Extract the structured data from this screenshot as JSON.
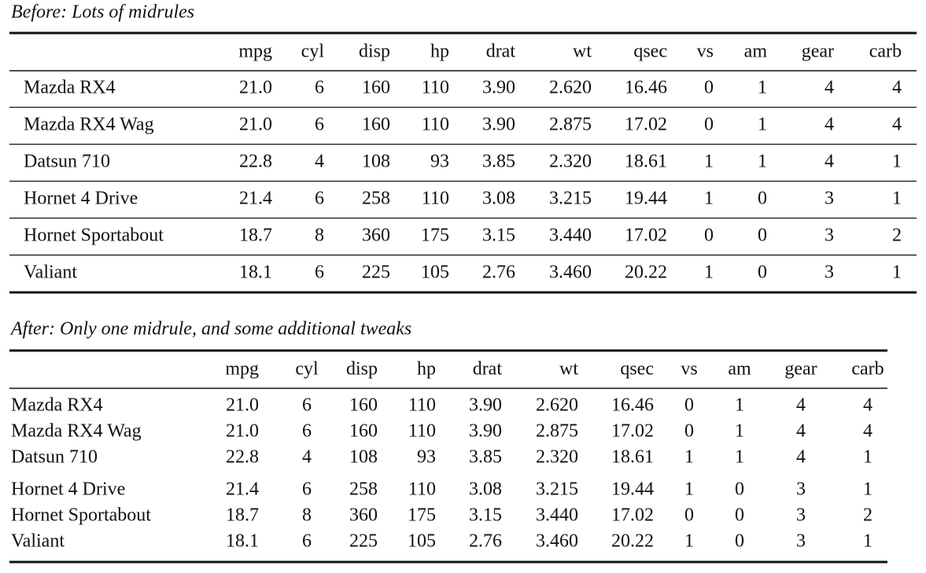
{
  "tables": [
    {
      "caption": "Before: Lots of midrules",
      "header": [
        "mpg",
        "cyl",
        "disp",
        "hp",
        "drat",
        "wt",
        "qsec",
        "vs",
        "am",
        "gear",
        "carb"
      ],
      "rows": [
        {
          "name": "Mazda RX4",
          "cells": [
            "21.0",
            "6",
            "160",
            "110",
            "3.90",
            "2.620",
            "16.46",
            "0",
            "1",
            "4",
            "4"
          ]
        },
        {
          "name": "Mazda RX4 Wag",
          "cells": [
            "21.0",
            "6",
            "160",
            "110",
            "3.90",
            "2.875",
            "17.02",
            "0",
            "1",
            "4",
            "4"
          ]
        },
        {
          "name": "Datsun 710",
          "cells": [
            "22.8",
            "4",
            "108",
            "93",
            "3.85",
            "2.320",
            "18.61",
            "1",
            "1",
            "4",
            "1"
          ]
        },
        {
          "name": "Hornet 4 Drive",
          "cells": [
            "21.4",
            "6",
            "258",
            "110",
            "3.08",
            "3.215",
            "19.44",
            "1",
            "0",
            "3",
            "1"
          ]
        },
        {
          "name": "Hornet Sportabout",
          "cells": [
            "18.7",
            "8",
            "360",
            "175",
            "3.15",
            "3.440",
            "17.02",
            "0",
            "0",
            "3",
            "2"
          ]
        },
        {
          "name": "Valiant",
          "cells": [
            "18.1",
            "6",
            "225",
            "105",
            "2.76",
            "3.460",
            "20.22",
            "1",
            "0",
            "3",
            "1"
          ]
        }
      ]
    },
    {
      "caption": "After: Only one midrule, and some additional tweaks",
      "header": [
        "mpg",
        "cyl",
        "disp",
        "hp",
        "drat",
        "wt",
        "qsec",
        "vs",
        "am",
        "gear",
        "carb"
      ],
      "rows": [
        {
          "name": "Mazda RX4",
          "cells": [
            "21.0",
            "6",
            "160",
            "110",
            "3.90",
            "2.620",
            "16.46",
            "0",
            "1",
            "4",
            "4"
          ]
        },
        {
          "name": "Mazda RX4 Wag",
          "cells": [
            "21.0",
            "6",
            "160",
            "110",
            "3.90",
            "2.875",
            "17.02",
            "0",
            "1",
            "4",
            "4"
          ]
        },
        {
          "name": "Datsun 710",
          "cells": [
            "22.8",
            "4",
            "108",
            "93",
            "3.85",
            "2.320",
            "18.61",
            "1",
            "1",
            "4",
            "1"
          ]
        },
        {
          "name": "Hornet 4 Drive",
          "cells": [
            "21.4",
            "6",
            "258",
            "110",
            "3.08",
            "3.215",
            "19.44",
            "1",
            "0",
            "3",
            "1"
          ]
        },
        {
          "name": "Hornet Sportabout",
          "cells": [
            "18.7",
            "8",
            "360",
            "175",
            "3.15",
            "3.440",
            "17.02",
            "0",
            "0",
            "3",
            "2"
          ]
        },
        {
          "name": "Valiant",
          "cells": [
            "18.1",
            "6",
            "225",
            "105",
            "2.76",
            "3.460",
            "20.22",
            "1",
            "0",
            "3",
            "1"
          ]
        }
      ]
    }
  ]
}
